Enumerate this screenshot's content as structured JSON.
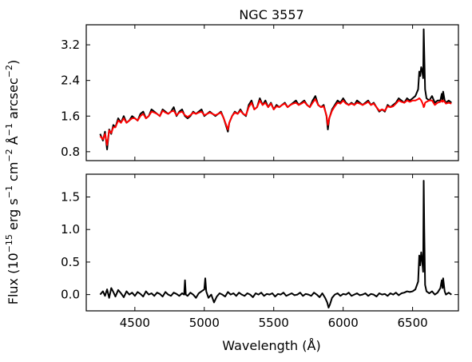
{
  "figure": {
    "title": "NGC 3557",
    "ylabel": "Flux (10$^{-15}$ erg s$^{-1}$ cm$^{-2}$ Å$^{-1}$ arcsec$^{-2}$)",
    "ylabel_parts": [
      "Flux (10",
      "−15",
      " erg s",
      "−1",
      " cm",
      "−2",
      " Å",
      "−1",
      " arcsec",
      "−2",
      ")"
    ],
    "xlabel": "Wavelength (Å)"
  },
  "chart_data": [
    {
      "type": "line",
      "panel": "top",
      "title": "NGC 3557",
      "xlim": [
        4150,
        6830
      ],
      "ylim": [
        0.6,
        3.65
      ],
      "x_ticks": [
        4500,
        5000,
        5500,
        6000,
        6500
      ],
      "y_ticks": [
        0.8,
        1.6,
        2.4,
        3.2
      ],
      "y_tick_labels": [
        "0.8",
        "1.6",
        "2.4",
        "3.2"
      ],
      "show_x_tick_labels": false,
      "series": [
        {
          "color": "#000000",
          "x": [
            4250,
            4270,
            4285,
            4300,
            4315,
            4330,
            4345,
            4360,
            4380,
            4400,
            4420,
            4440,
            4460,
            4480,
            4500,
            4520,
            4540,
            4560,
            4580,
            4600,
            4620,
            4640,
            4660,
            4680,
            4700,
            4720,
            4740,
            4760,
            4780,
            4800,
            4820,
            4840,
            4860,
            4880,
            4900,
            4920,
            4940,
            4960,
            4980,
            5000,
            5020,
            5040,
            5060,
            5080,
            5100,
            5120,
            5140,
            5160,
            5170,
            5180,
            5200,
            5220,
            5240,
            5260,
            5280,
            5300,
            5320,
            5340,
            5360,
            5380,
            5400,
            5420,
            5440,
            5460,
            5480,
            5500,
            5520,
            5540,
            5560,
            5580,
            5600,
            5620,
            5640,
            5660,
            5680,
            5700,
            5720,
            5740,
            5760,
            5780,
            5800,
            5820,
            5840,
            5860,
            5880,
            5890,
            5900,
            5920,
            5940,
            5960,
            5980,
            6000,
            6020,
            6040,
            6060,
            6080,
            6100,
            6120,
            6140,
            6160,
            6180,
            6200,
            6220,
            6240,
            6260,
            6280,
            6300,
            6320,
            6340,
            6360,
            6380,
            6400,
            6420,
            6440,
            6460,
            6480,
            6500,
            6520,
            6540,
            6548,
            6555,
            6562,
            6570,
            6576,
            6580,
            6584,
            6590,
            6600,
            6620,
            6640,
            6660,
            6680,
            6700,
            6710,
            6716,
            6720,
            6731,
            6740,
            6760,
            6780
          ],
          "values": [
            1.2,
            1.05,
            1.25,
            0.85,
            1.3,
            1.2,
            1.4,
            1.35,
            1.55,
            1.45,
            1.6,
            1.45,
            1.5,
            1.6,
            1.55,
            1.5,
            1.65,
            1.7,
            1.55,
            1.6,
            1.75,
            1.7,
            1.65,
            1.6,
            1.75,
            1.7,
            1.65,
            1.7,
            1.8,
            1.6,
            1.7,
            1.75,
            1.6,
            1.55,
            1.6,
            1.7,
            1.65,
            1.7,
            1.75,
            1.6,
            1.65,
            1.7,
            1.65,
            1.6,
            1.65,
            1.7,
            1.55,
            1.35,
            1.25,
            1.45,
            1.6,
            1.7,
            1.65,
            1.75,
            1.65,
            1.6,
            1.85,
            1.95,
            1.75,
            1.8,
            2.0,
            1.85,
            1.95,
            1.8,
            1.9,
            1.75,
            1.85,
            1.8,
            1.85,
            1.9,
            1.8,
            1.85,
            1.9,
            1.95,
            1.85,
            1.9,
            1.95,
            1.85,
            1.8,
            1.95,
            2.05,
            1.85,
            1.8,
            1.85,
            1.6,
            1.3,
            1.55,
            1.75,
            1.85,
            1.95,
            1.9,
            2.0,
            1.9,
            1.85,
            1.9,
            1.85,
            1.95,
            1.9,
            1.85,
            1.9,
            1.95,
            1.85,
            1.9,
            1.8,
            1.7,
            1.75,
            1.7,
            1.85,
            1.8,
            1.85,
            1.9,
            2.0,
            1.95,
            1.9,
            2.0,
            1.95,
            2.0,
            2.05,
            2.2,
            2.6,
            2.5,
            2.7,
            2.6,
            2.45,
            3.55,
            3.0,
            2.2,
            2.0,
            1.95,
            2.05,
            1.9,
            1.95,
            1.95,
            2.1,
            1.95,
            2.15,
            1.95,
            1.9,
            1.95,
            1.9
          ]
        },
        {
          "color": "#ff0000",
          "x": [
            4250,
            4270,
            4285,
            4300,
            4315,
            4330,
            4345,
            4360,
            4380,
            4400,
            4420,
            4440,
            4460,
            4480,
            4500,
            4520,
            4540,
            4560,
            4580,
            4600,
            4620,
            4640,
            4660,
            4680,
            4700,
            4720,
            4740,
            4760,
            4780,
            4800,
            4820,
            4840,
            4860,
            4880,
            4900,
            4920,
            4940,
            4960,
            4980,
            5000,
            5020,
            5040,
            5060,
            5080,
            5100,
            5120,
            5140,
            5160,
            5170,
            5180,
            5200,
            5220,
            5240,
            5260,
            5280,
            5300,
            5320,
            5340,
            5360,
            5380,
            5400,
            5420,
            5440,
            5460,
            5480,
            5500,
            5520,
            5540,
            5560,
            5580,
            5600,
            5620,
            5640,
            5660,
            5680,
            5700,
            5720,
            5740,
            5760,
            5780,
            5800,
            5820,
            5840,
            5860,
            5880,
            5890,
            5900,
            5920,
            5940,
            5960,
            5980,
            6000,
            6020,
            6040,
            6060,
            6080,
            6100,
            6120,
            6140,
            6160,
            6180,
            6200,
            6220,
            6240,
            6260,
            6280,
            6300,
            6320,
            6340,
            6360,
            6380,
            6400,
            6420,
            6440,
            6460,
            6480,
            6500,
            6520,
            6540,
            6548,
            6555,
            6562,
            6570,
            6576,
            6580,
            6584,
            6590,
            6600,
            6620,
            6640,
            6660,
            6680,
            6700,
            6710,
            6716,
            6720,
            6731,
            6740,
            6760,
            6780
          ],
          "values": [
            1.15,
            1.08,
            1.2,
            0.95,
            1.28,
            1.22,
            1.35,
            1.35,
            1.5,
            1.45,
            1.55,
            1.45,
            1.5,
            1.55,
            1.55,
            1.5,
            1.6,
            1.65,
            1.55,
            1.6,
            1.7,
            1.68,
            1.65,
            1.6,
            1.72,
            1.68,
            1.65,
            1.7,
            1.72,
            1.62,
            1.68,
            1.7,
            1.62,
            1.58,
            1.62,
            1.68,
            1.65,
            1.68,
            1.7,
            1.62,
            1.65,
            1.68,
            1.65,
            1.62,
            1.65,
            1.68,
            1.55,
            1.38,
            1.3,
            1.45,
            1.6,
            1.68,
            1.65,
            1.72,
            1.65,
            1.62,
            1.8,
            1.9,
            1.75,
            1.8,
            1.95,
            1.85,
            1.9,
            1.8,
            1.88,
            1.75,
            1.82,
            1.8,
            1.85,
            1.88,
            1.8,
            1.85,
            1.88,
            1.9,
            1.85,
            1.88,
            1.92,
            1.85,
            1.8,
            1.9,
            1.98,
            1.85,
            1.8,
            1.82,
            1.62,
            1.4,
            1.55,
            1.72,
            1.82,
            1.9,
            1.88,
            1.95,
            1.88,
            1.85,
            1.88,
            1.85,
            1.9,
            1.88,
            1.85,
            1.88,
            1.92,
            1.85,
            1.88,
            1.8,
            1.72,
            1.75,
            1.72,
            1.82,
            1.8,
            1.82,
            1.88,
            1.95,
            1.92,
            1.9,
            1.95,
            1.92,
            1.95,
            1.95,
            1.98,
            2.0,
            1.98,
            1.95,
            1.9,
            1.85,
            1.8,
            1.82,
            1.9,
            1.92,
            1.95,
            1.95,
            1.85,
            1.9,
            1.92,
            1.95,
            1.92,
            1.95,
            1.92,
            1.88,
            1.9,
            1.88
          ]
        }
      ]
    },
    {
      "type": "line",
      "panel": "bottom",
      "xlabel": "Wavelength (Å)",
      "xlim": [
        4150,
        6830
      ],
      "ylim": [
        -0.25,
        1.85
      ],
      "x_ticks": [
        4500,
        5000,
        5500,
        6000,
        6500
      ],
      "x_tick_labels": [
        "4500",
        "5000",
        "5500",
        "6000",
        "6500"
      ],
      "y_ticks": [
        0.0,
        0.5,
        1.0,
        1.5
      ],
      "y_tick_labels": [
        "0.0",
        "0.5",
        "1.0",
        "1.5"
      ],
      "series": [
        {
          "color": "#000000",
          "x": [
            4250,
            4270,
            4285,
            4300,
            4315,
            4330,
            4345,
            4360,
            4380,
            4400,
            4420,
            4440,
            4460,
            4480,
            4500,
            4520,
            4540,
            4560,
            4580,
            4600,
            4620,
            4640,
            4660,
            4680,
            4700,
            4720,
            4740,
            4760,
            4780,
            4800,
            4820,
            4840,
            4855,
            4861,
            4867,
            4880,
            4900,
            4920,
            4940,
            4960,
            4980,
            5000,
            5007,
            5014,
            5030,
            5050,
            5070,
            5090,
            5110,
            5130,
            5150,
            5170,
            5190,
            5210,
            5230,
            5250,
            5270,
            5290,
            5310,
            5330,
            5350,
            5370,
            5390,
            5410,
            5430,
            5450,
            5470,
            5490,
            5510,
            5530,
            5550,
            5570,
            5590,
            5610,
            5630,
            5650,
            5670,
            5690,
            5710,
            5730,
            5750,
            5770,
            5790,
            5810,
            5830,
            5850,
            5870,
            5885,
            5895,
            5905,
            5920,
            5940,
            5960,
            5980,
            6000,
            6020,
            6040,
            6060,
            6080,
            6100,
            6120,
            6140,
            6160,
            6180,
            6200,
            6220,
            6240,
            6260,
            6280,
            6300,
            6320,
            6340,
            6360,
            6380,
            6400,
            6420,
            6440,
            6460,
            6480,
            6500,
            6520,
            6540,
            6548,
            6555,
            6562,
            6570,
            6576,
            6580,
            6584,
            6590,
            6600,
            6620,
            6640,
            6660,
            6680,
            6700,
            6710,
            6716,
            6720,
            6731,
            6740,
            6760,
            6780
          ],
          "values": [
            0.0,
            0.05,
            -0.02,
            0.08,
            -0.05,
            0.1,
            0.04,
            -0.03,
            0.07,
            0.02,
            -0.04,
            0.05,
            0.0,
            0.03,
            -0.02,
            0.04,
            0.01,
            -0.03,
            0.05,
            0.0,
            0.02,
            -0.02,
            0.03,
            0.01,
            -0.03,
            0.04,
            0.0,
            -0.02,
            0.03,
            0.01,
            -0.02,
            0.02,
            0.0,
            0.22,
            0.0,
            -0.02,
            0.03,
            0.0,
            -0.05,
            0.02,
            0.05,
            0.08,
            0.25,
            0.05,
            -0.05,
            0.0,
            -0.12,
            -0.03,
            0.02,
            0.0,
            -0.03,
            0.04,
            0.0,
            0.02,
            -0.02,
            0.03,
            0.0,
            -0.02,
            0.02,
            0.0,
            -0.04,
            0.02,
            0.0,
            0.03,
            -0.02,
            0.01,
            0.0,
            0.02,
            -0.03,
            0.01,
            0.0,
            0.03,
            -0.02,
            0.0,
            0.02,
            -0.01,
            0.0,
            0.03,
            -0.02,
            0.01,
            0.0,
            -0.02,
            0.03,
            0.0,
            -0.04,
            0.02,
            -0.05,
            -0.12,
            -0.2,
            -0.15,
            -0.05,
            0.0,
            0.02,
            -0.02,
            0.01,
            0.0,
            0.03,
            -0.02,
            0.0,
            0.02,
            -0.01,
            0.0,
            0.02,
            -0.02,
            0.01,
            0.0,
            -0.03,
            0.02,
            0.0,
            0.01,
            -0.02,
            0.02,
            0.0,
            0.03,
            -0.01,
            0.02,
            0.03,
            0.05,
            0.04,
            0.05,
            0.08,
            0.2,
            0.6,
            0.45,
            0.65,
            0.5,
            0.35,
            1.75,
            1.0,
            0.15,
            0.05,
            0.02,
            0.05,
            0.0,
            0.03,
            0.1,
            0.22,
            0.1,
            0.25,
            0.05,
            0.0,
            0.03,
            0.0
          ]
        }
      ]
    }
  ]
}
